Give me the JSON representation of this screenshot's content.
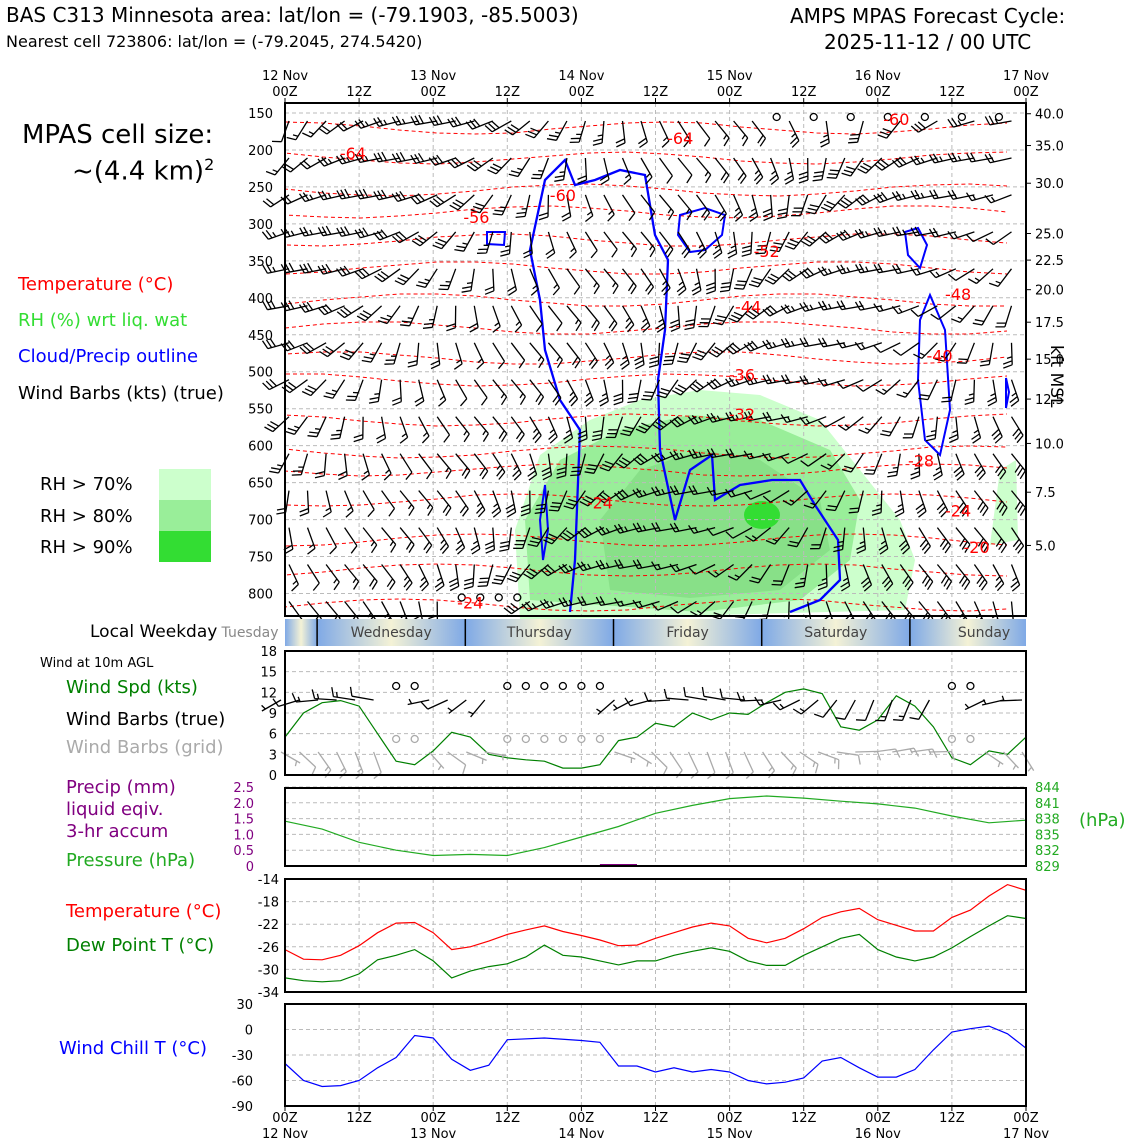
{
  "header": {
    "title_left": "BAS C313 Minnesota area: lat/lon = (-79.1903, -85.5003)",
    "subtitle_left": "Nearest cell 723806: lat/lon = (-79.2045, 274.5420)",
    "title_right_line1": "AMPS MPAS Forecast Cycle:",
    "title_right_line2": "2025-11-12 / 00 UTC"
  },
  "legend": {
    "cell_size_label": "MPAS cell size:",
    "cell_size_value": "~(4.4 km)",
    "cell_size_exp": "2",
    "temperature": "Temperature (°C)",
    "rh": "RH (%) wrt liq. wat",
    "cloud": "Cloud/Precip outline",
    "barbs": "Wind Barbs (kts) (true)",
    "rh70": "RH > 70%",
    "rh80": "RH > 80%",
    "rh90": "RH > 90%",
    "local_weekday": "Local Weekday",
    "wind10m": "Wind at 10m AGL",
    "wind_spd": "Wind Spd (kts)",
    "wind_barbs_true": "Wind Barbs (true)",
    "wind_barbs_grid": "Wind Barbs (grid)",
    "precip1": "Precip (mm)",
    "precip2": "liquid eqiv.",
    "precip3": "3-hr accum",
    "pressure": "Pressure (hPa)",
    "temp2": "Temperature (°C)",
    "dewpoint": "Dew Point T (°C)",
    "windchill": "Wind Chill T (°C)",
    "kft_label": "kft MSL",
    "hpa_label": "(hPa)"
  },
  "colors": {
    "temp": "#ff0000",
    "rh": "#22cc22",
    "cloud": "#0000ff",
    "precip": "#800080",
    "rh70": "#ccffcc",
    "rh80": "#99ee99",
    "rh90": "#33dd33",
    "grid_barb": "#aaaaaa"
  },
  "chart_data": [
    {
      "type": "heatmap",
      "title": "Time-height cross section",
      "top_axis_ticks": [
        {
          "line1": "12 Nov",
          "line2": "00Z"
        },
        {
          "line1": "",
          "line2": "12Z"
        },
        {
          "line1": "13 Nov",
          "line2": "00Z"
        },
        {
          "line1": "",
          "line2": "12Z"
        },
        {
          "line1": "14 Nov",
          "line2": "00Z"
        },
        {
          "line1": "",
          "line2": "12Z"
        },
        {
          "line1": "15 Nov",
          "line2": "00Z"
        },
        {
          "line1": "",
          "line2": "12Z"
        },
        {
          "line1": "16 Nov",
          "line2": "00Z"
        },
        {
          "line1": "",
          "line2": "12Z"
        },
        {
          "line1": "17 Nov",
          "line2": "00Z"
        }
      ],
      "x_hours_range": [
        0,
        120
      ],
      "pressure_ticks": [
        "150",
        "200",
        "250",
        "300",
        "350",
        "400",
        "450",
        "500",
        "550",
        "600",
        "650",
        "700",
        "750",
        "800"
      ],
      "pressure_range_hpa": [
        150,
        820
      ],
      "height_ticks_kft": [
        {
          "label": "40.0",
          "p": 151
        },
        {
          "label": "35.0",
          "p": 194
        },
        {
          "label": "30.0",
          "p": 245
        },
        {
          "label": "25.0",
          "p": 313
        },
        {
          "label": "22.5",
          "p": 349
        },
        {
          "label": "20.0",
          "p": 389
        },
        {
          "label": "17.5",
          "p": 433
        },
        {
          "label": "15.0",
          "p": 483
        },
        {
          "label": "12.5",
          "p": 537
        },
        {
          "label": "10.0",
          "p": 597
        },
        {
          "label": "7.5",
          "p": 663
        },
        {
          "label": "5.0",
          "p": 735
        }
      ],
      "temperature_labels": [
        {
          "text": "-60",
          "h": 99,
          "p": 166
        },
        {
          "text": "-64",
          "h": 64,
          "p": 192
        },
        {
          "text": "-64",
          "h": 11,
          "p": 212
        },
        {
          "text": "-60",
          "h": 45,
          "p": 269
        },
        {
          "text": "-56",
          "h": 31,
          "p": 299
        },
        {
          "text": "-52",
          "h": 78,
          "p": 345
        },
        {
          "text": "-48",
          "h": 109,
          "p": 403
        },
        {
          "text": "-44",
          "h": 75,
          "p": 420
        },
        {
          "text": "-40",
          "h": 106,
          "p": 486
        },
        {
          "text": "-36",
          "h": 74,
          "p": 512
        },
        {
          "text": "-32",
          "h": 74,
          "p": 565
        },
        {
          "text": "-28",
          "h": 103,
          "p": 628
        },
        {
          "text": "-24",
          "h": 51,
          "p": 685
        },
        {
          "text": "-24",
          "h": 109,
          "p": 696
        },
        {
          "text": "-20",
          "h": 112,
          "p": 745
        },
        {
          "text": "-24",
          "h": 30,
          "p": 820
        }
      ]
    },
    {
      "type": "bar",
      "title": "Local Weekday",
      "categories": [
        "Tuesday",
        "Wednesday",
        "Thursday",
        "Friday",
        "Saturday",
        "Sunday"
      ]
    },
    {
      "type": "line",
      "title": "Wind at 10m AGL",
      "ylim": [
        0,
        18
      ],
      "yticks": [
        0,
        3,
        6,
        9,
        12,
        15,
        18
      ],
      "x_hours": [
        0,
        3,
        6,
        9,
        12,
        15,
        18,
        21,
        24,
        27,
        30,
        33,
        36,
        39,
        42,
        45,
        48,
        51,
        54,
        57,
        60,
        63,
        66,
        69,
        72,
        75,
        78,
        81,
        84,
        87,
        90,
        93,
        96,
        99,
        102,
        105,
        108,
        111,
        114,
        117,
        120
      ],
      "series": [
        {
          "name": "Wind Spd (kts)",
          "values": [
            5.5,
            9,
            10.5,
            10.8,
            10,
            6,
            2,
            1.5,
            3.5,
            6.2,
            5.5,
            3,
            2.5,
            2.2,
            2,
            1,
            1,
            1.5,
            5,
            5.5,
            7.5,
            7,
            9,
            8,
            9,
            8.8,
            10.5,
            12,
            12.5,
            11.8,
            7,
            6.5,
            8,
            11.5,
            10,
            7,
            2.5,
            1.5,
            3.5,
            3,
            5.5
          ]
        }
      ]
    },
    {
      "type": "line",
      "title": "Precip / Pressure",
      "ylim_left": [
        0,
        2.5
      ],
      "yticks_left": [
        0,
        0.5,
        1.0,
        1.5,
        2.0,
        2.5
      ],
      "ylim_right": [
        829,
        844
      ],
      "yticks_right": [
        829,
        832,
        835,
        838,
        841,
        844
      ],
      "series": [
        {
          "name": "Pressure (hPa)",
          "x_hours": [
            0,
            6,
            12,
            18,
            24,
            30,
            36,
            42,
            48,
            54,
            60,
            66,
            72,
            78,
            84,
            90,
            96,
            102,
            108,
            114,
            120
          ],
          "values": [
            837.5,
            836,
            833.5,
            832,
            831,
            831.2,
            831,
            832.5,
            834.5,
            836.5,
            839,
            840.5,
            841.8,
            842.3,
            841.9,
            841.3,
            840.8,
            840,
            838.5,
            837.2,
            837.7
          ]
        },
        {
          "name": "Precip (mm)",
          "x_hours": [
            51,
            57
          ],
          "values": [
            0.02,
            0.02
          ]
        }
      ]
    },
    {
      "type": "line",
      "title": "Temperature / Dew Point",
      "ylim": [
        -34,
        -14
      ],
      "yticks": [
        -34,
        -30,
        -26,
        -22,
        -18,
        -14
      ],
      "x_hours": [
        0,
        3,
        6,
        9,
        12,
        15,
        18,
        21,
        24,
        27,
        30,
        33,
        36,
        39,
        42,
        45,
        48,
        51,
        54,
        57,
        60,
        63,
        66,
        69,
        72,
        75,
        78,
        81,
        84,
        87,
        90,
        93,
        96,
        99,
        102,
        105,
        108,
        111,
        114,
        117,
        120
      ],
      "series": [
        {
          "name": "Temperature (°C)",
          "values": [
            -26.5,
            -28.2,
            -28.3,
            -27.5,
            -25.8,
            -23.5,
            -21.8,
            -21.7,
            -23.5,
            -26.5,
            -26,
            -25,
            -23.8,
            -23,
            -22.3,
            -23.3,
            -24,
            -24.8,
            -25.8,
            -25.7,
            -24.5,
            -23.5,
            -22.5,
            -21.8,
            -22.3,
            -24.5,
            -25.3,
            -24.5,
            -22.8,
            -20.8,
            -19.8,
            -19.2,
            -21.2,
            -22.2,
            -23.2,
            -23.2,
            -20.8,
            -19.5,
            -17,
            -15,
            -16
          ]
        },
        {
          "name": "Dew Point T (°C)",
          "values": [
            -31.5,
            -32,
            -32.2,
            -32,
            -30.8,
            -28.3,
            -27.5,
            -26.5,
            -28.5,
            -31.5,
            -30.3,
            -29.5,
            -29,
            -27.8,
            -25.7,
            -27.5,
            -27.8,
            -28.5,
            -29.2,
            -28.5,
            -28.5,
            -27.5,
            -26.8,
            -26.2,
            -26.8,
            -28.5,
            -29.3,
            -29.3,
            -27.5,
            -26,
            -24.5,
            -23.8,
            -26.5,
            -27.8,
            -28.5,
            -27.8,
            -26.2,
            -24.2,
            -22.3,
            -20.5,
            -21
          ]
        }
      ]
    },
    {
      "type": "line",
      "title": "Wind Chill",
      "ylim": [
        -90,
        30
      ],
      "yticks": [
        -90,
        -60,
        -30,
        0,
        30
      ],
      "series": [
        {
          "name": "Wind Chill T (°C)",
          "x_hours": [
            0,
            3,
            6,
            9,
            12,
            15,
            18,
            21,
            24,
            27,
            30,
            33,
            36,
            42,
            48,
            51,
            54,
            57,
            60,
            63,
            66,
            69,
            72,
            75,
            78,
            81,
            84,
            87,
            90,
            93,
            96,
            99,
            102,
            105,
            108,
            111,
            114,
            117,
            120
          ],
          "values": [
            -40,
            -60,
            -67,
            -66,
            -60,
            -45,
            -33,
            -7,
            -10,
            -35,
            -48,
            -42,
            -12,
            -10,
            -13,
            -15,
            -43,
            -43,
            -50,
            -45,
            -50,
            -47,
            -50,
            -60,
            -64,
            -62,
            -57,
            -37,
            -33,
            -45,
            -56,
            -56,
            -47,
            -24,
            -3,
            1,
            4,
            -5,
            -22
          ]
        }
      ]
    },
    {
      "type": "line",
      "title": "Bottom time axis",
      "bottom_axis_ticks": [
        {
          "line1": "00Z",
          "line2": "12 Nov"
        },
        {
          "line1": "12Z",
          "line2": ""
        },
        {
          "line1": "00Z",
          "line2": "13 Nov"
        },
        {
          "line1": "12Z",
          "line2": ""
        },
        {
          "line1": "00Z",
          "line2": "14 Nov"
        },
        {
          "line1": "12Z",
          "line2": ""
        },
        {
          "line1": "00Z",
          "line2": "15 Nov"
        },
        {
          "line1": "12Z",
          "line2": ""
        },
        {
          "line1": "00Z",
          "line2": "16 Nov"
        },
        {
          "line1": "12Z",
          "line2": ""
        },
        {
          "line1": "00Z",
          "line2": "17 Nov"
        }
      ]
    }
  ]
}
